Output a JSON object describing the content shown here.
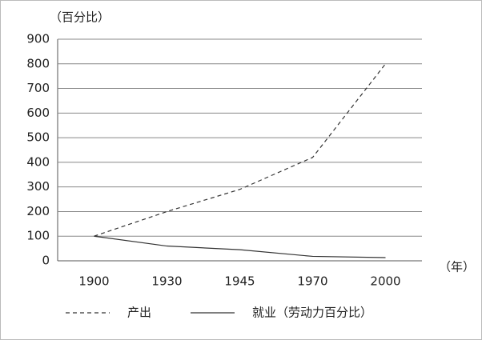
{
  "chart_data": {
    "type": "line",
    "y_label": "（百分比）",
    "x_label": "（年）",
    "categories": [
      "1900",
      "1930",
      "1945",
      "1970",
      "2000"
    ],
    "series": [
      {
        "name": "产出",
        "color": "#333333",
        "line_style": "dashed",
        "values": [
          100,
          200,
          290,
          420,
          800
        ]
      },
      {
        "name": "就业（劳动力百分比）",
        "color": "#333333",
        "line_style": "solid",
        "values": [
          100,
          60,
          45,
          18,
          13
        ]
      }
    ],
    "ylim": [
      0,
      900
    ],
    "yticks": [
      0,
      100,
      200,
      300,
      400,
      500,
      600,
      700,
      800,
      900
    ],
    "grid": true,
    "legend": "bottom"
  }
}
